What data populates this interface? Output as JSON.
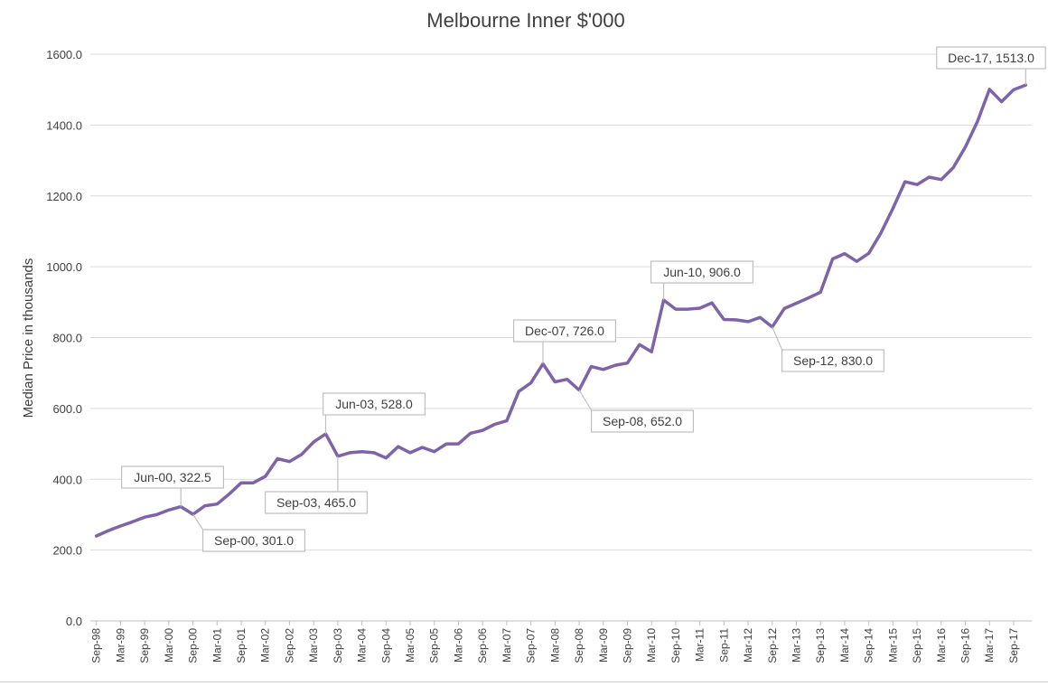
{
  "chart_data": {
    "type": "line",
    "title": "Melbourne Inner $'000",
    "ylabel": "Median Price in thousands",
    "xlabel": "",
    "ylim": [
      0,
      1600
    ],
    "yticks": [
      "0.0",
      "200.0",
      "400.0",
      "600.0",
      "800.0",
      "1000.0",
      "1200.0",
      "1400.0",
      "1600.0"
    ],
    "grid": "horizontal",
    "legend": "none",
    "colors": {
      "series": "#7f63a8",
      "grid": "#d9d9d9",
      "axis": "#bfbfbf",
      "text": "#404040",
      "callout_border": "#bfbfbf"
    },
    "x": [
      "Sep-98",
      "Dec-98",
      "Mar-99",
      "Jun-99",
      "Sep-99",
      "Dec-99",
      "Mar-00",
      "Jun-00",
      "Sep-00",
      "Dec-00",
      "Mar-01",
      "Jun-01",
      "Sep-01",
      "Dec-01",
      "Mar-02",
      "Jun-02",
      "Sep-02",
      "Dec-02",
      "Mar-03",
      "Jun-03",
      "Sep-03",
      "Dec-03",
      "Mar-04",
      "Jun-04",
      "Sep-04",
      "Dec-04",
      "Mar-05",
      "Jun-05",
      "Sep-05",
      "Dec-05",
      "Mar-06",
      "Jun-06",
      "Sep-06",
      "Dec-06",
      "Mar-07",
      "Jun-07",
      "Sep-07",
      "Dec-07",
      "Mar-08",
      "Jun-08",
      "Sep-08",
      "Dec-08",
      "Mar-09",
      "Jun-09",
      "Sep-09",
      "Dec-09",
      "Mar-10",
      "Jun-10",
      "Sep-10",
      "Dec-10",
      "Mar-11",
      "Jun-11",
      "Sep-11",
      "Dec-11",
      "Mar-12",
      "Jun-12",
      "Sep-12",
      "Dec-12",
      "Mar-13",
      "Jun-13",
      "Sep-13",
      "Dec-13",
      "Mar-14",
      "Jun-14",
      "Sep-14",
      "Dec-14",
      "Mar-15",
      "Jun-15",
      "Sep-15",
      "Dec-15",
      "Mar-16",
      "Jun-16",
      "Sep-16",
      "Dec-16",
      "Mar-17",
      "Jun-17",
      "Sep-17",
      "Dec-17"
    ],
    "xtick_labels": [
      "Sep-98",
      "Mar-99",
      "Sep-99",
      "Mar-00",
      "Sep-00",
      "Mar-01",
      "Sep-01",
      "Mar-02",
      "Sep-02",
      "Mar-03",
      "Sep-03",
      "Mar-04",
      "Sep-04",
      "Mar-05",
      "Sep-05",
      "Mar-06",
      "Sep-06",
      "Mar-07",
      "Sep-07",
      "Mar-08",
      "Sep-08",
      "Mar-09",
      "Sep-09",
      "Mar-10",
      "Sep-10",
      "Mar-11",
      "Sep-11",
      "Mar-12",
      "Sep-12",
      "Mar-13",
      "Sep-13",
      "Mar-14",
      "Sep-14",
      "Mar-15",
      "Sep-15",
      "Mar-16",
      "Sep-16",
      "Mar-17",
      "Sep-17"
    ],
    "series": [
      {
        "values": [
          240,
          255,
          268,
          280,
          293,
          300,
          313,
          322.5,
          301,
          325,
          330,
          358,
          390,
          390,
          408,
          458,
          450,
          470,
          505,
          528,
          465,
          475,
          478,
          475,
          460,
          492,
          475,
          490,
          478,
          500,
          500,
          530,
          538,
          555,
          565,
          648,
          672,
          726,
          675,
          682,
          652,
          718,
          710,
          722,
          728,
          780,
          760,
          906,
          880,
          880,
          883,
          898,
          851,
          850,
          845,
          857,
          830,
          882,
          897,
          912,
          928,
          1022,
          1037,
          1015,
          1038,
          1095,
          1165,
          1240,
          1232,
          1253,
          1246,
          1280,
          1338,
          1410,
          1501,
          1466,
          1500,
          1513
        ]
      }
    ],
    "annotations": [
      {
        "x": "Jun-00",
        "label": "Jun-00, 322.5"
      },
      {
        "x": "Sep-00",
        "label": "Sep-00, 301.0"
      },
      {
        "x": "Jun-03",
        "label": "Jun-03, 528.0"
      },
      {
        "x": "Sep-03",
        "label": "Sep-03, 465.0"
      },
      {
        "x": "Dec-07",
        "label": "Dec-07, 726.0"
      },
      {
        "x": "Sep-08",
        "label": "Sep-08, 652.0"
      },
      {
        "x": "Jun-10",
        "label": "Jun-10, 906.0"
      },
      {
        "x": "Sep-12",
        "label": "Sep-12, 830.0"
      },
      {
        "x": "Dec-17",
        "label": "Dec-17, 1513.0"
      }
    ]
  }
}
